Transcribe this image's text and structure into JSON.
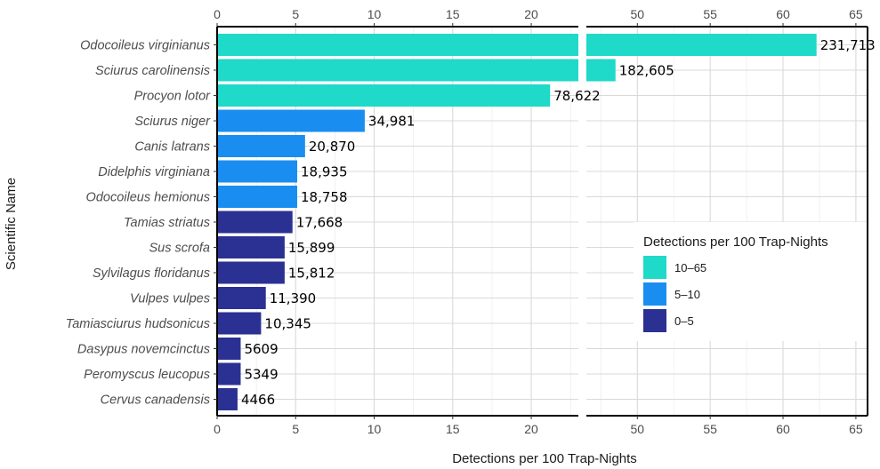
{
  "chart_data": {
    "type": "bar",
    "orientation": "horizontal",
    "xlabel": "Detections per 100 Trap-Nights",
    "ylabel": "Scientific Name",
    "broken_x_axis": {
      "left_segment": [
        0,
        23
      ],
      "right_segment": [
        46.5,
        65.8
      ]
    },
    "left_ticks": [
      0,
      5,
      10,
      15,
      20
    ],
    "right_ticks": [
      50,
      55,
      60,
      65
    ],
    "categories": [
      "Odocoileus virginianus",
      "Sciurus carolinensis",
      "Procyon lotor",
      "Sciurus niger",
      "Canis latrans",
      "Didelphis virginiana",
      "Odocoileus hemionus",
      "Tamias striatus",
      "Sus scrofa",
      "Sylvilagus floridanus",
      "Vulpes vulpes",
      "Tamiasciurus hudsonicus",
      "Dasypus novemcinctus",
      "Peromyscus leucopus",
      "Cervus canadensis"
    ],
    "values": [
      62.3,
      48.5,
      21.2,
      9.4,
      5.6,
      5.1,
      5.1,
      4.8,
      4.3,
      4.3,
      3.1,
      2.8,
      1.5,
      1.5,
      1.3
    ],
    "data_labels": [
      "231,713",
      "182,605",
      "78,622",
      "34,981",
      "20,870",
      "18,935",
      "18,758",
      "17,668",
      "15,899",
      "15,812",
      "11,390",
      "10,345",
      "5609",
      "5349",
      "4466"
    ],
    "group": [
      "10–65",
      "10–65",
      "10–65",
      "5–10",
      "5–10",
      "5–10",
      "5–10",
      "0–5",
      "0–5",
      "0–5",
      "0–5",
      "0–5",
      "0–5",
      "0–5",
      "0–5"
    ],
    "grid": true,
    "legend": {
      "title": "Detections per 100 Trap-Nights",
      "placement": "right",
      "items": [
        {
          "label": "10–65",
          "color": "#1fd9c9"
        },
        {
          "label": "5–10",
          "color": "#1a8ef0"
        },
        {
          "label": "0–5",
          "color": "#2b3192"
        }
      ]
    }
  }
}
